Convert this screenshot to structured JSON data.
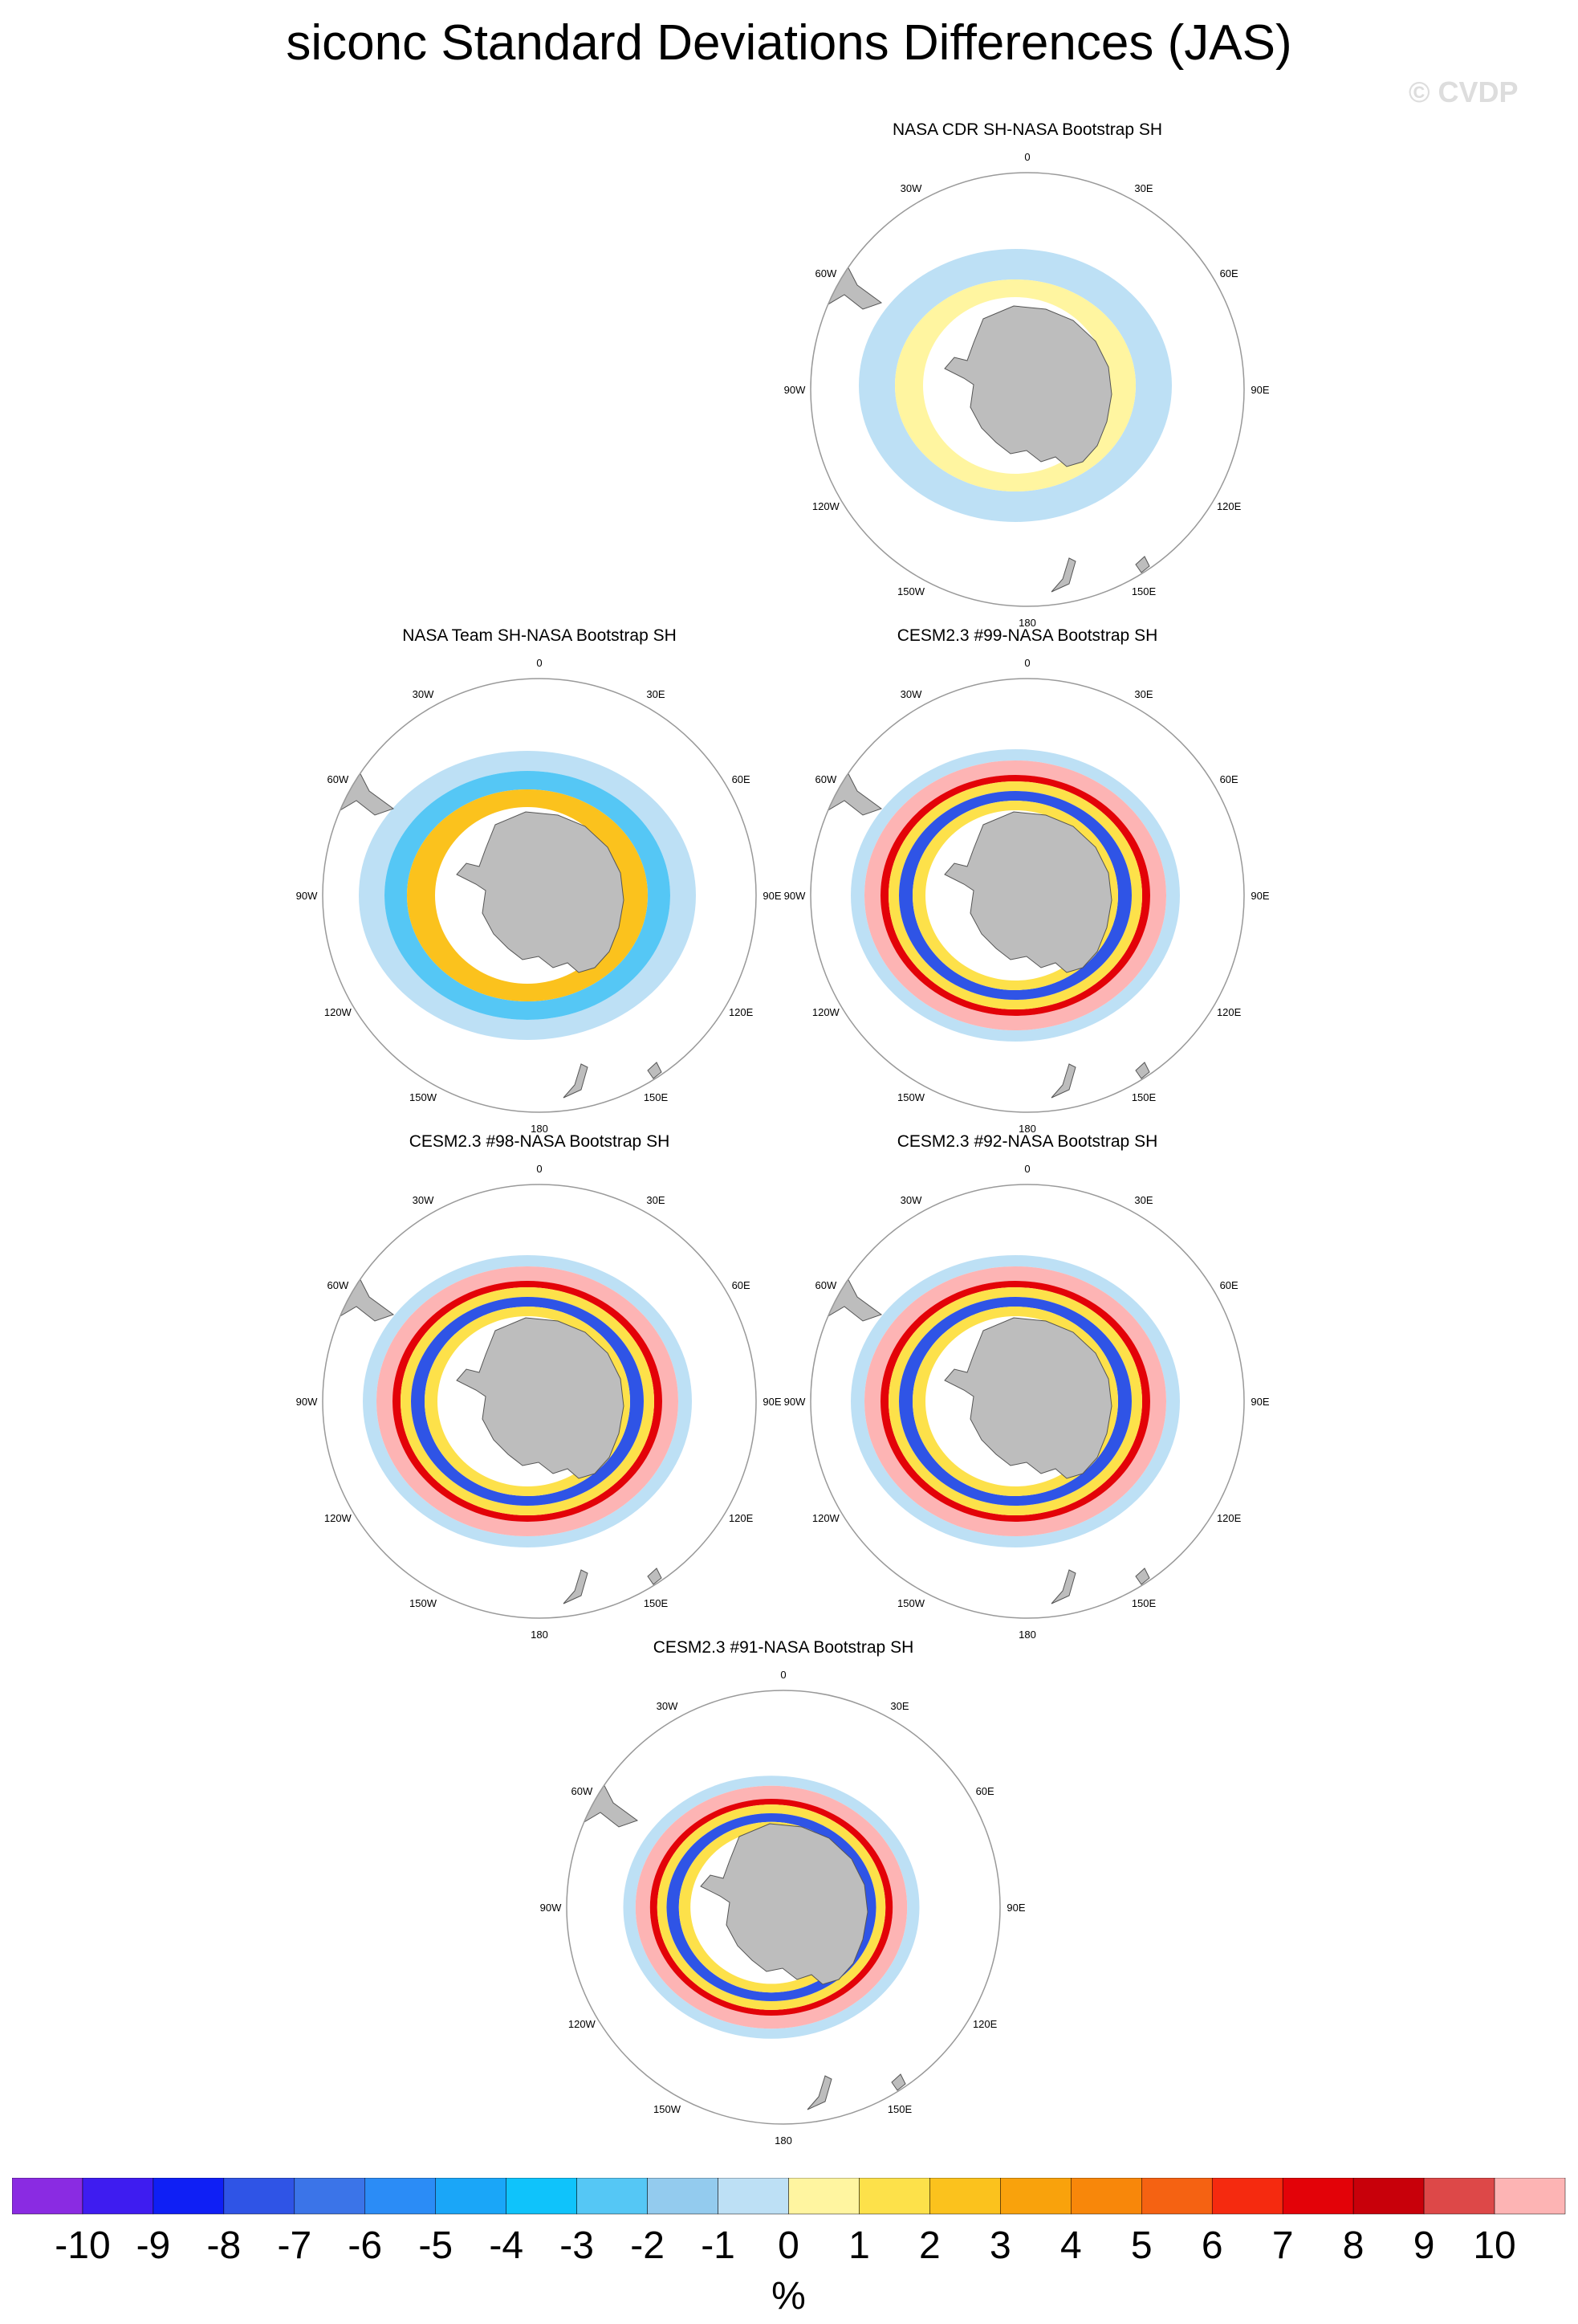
{
  "title": "siconc Standard Deviations Differences (JAS)",
  "watermark": "© CVDP",
  "panels": [
    {
      "id": "p1",
      "title": "NASA CDR SH-NASA Bootstrap SH",
      "pattern": "cdr"
    },
    {
      "id": "p2",
      "title": "NASA Team SH-NASA Bootstrap SH",
      "pattern": "team"
    },
    {
      "id": "p3",
      "title": "CESM2.3 #99-NASA Bootstrap SH",
      "pattern": "model"
    },
    {
      "id": "p4",
      "title": "CESM2.3 #98-NASA Bootstrap SH",
      "pattern": "model"
    },
    {
      "id": "p5",
      "title": "CESM2.3 #92-NASA Bootstrap SH",
      "pattern": "model"
    },
    {
      "id": "p6",
      "title": "CESM2.3 #91-NASA Bootstrap SH",
      "pattern": "model"
    }
  ],
  "map_labels": [
    "0",
    "30E",
    "60E",
    "90E",
    "120E",
    "150E",
    "180",
    "150W",
    "120W",
    "90W",
    "60W",
    "30W"
  ],
  "colorbar": {
    "colors": [
      "#8a2be2",
      "#3e1cf0",
      "#0f1ff5",
      "#2f54e6",
      "#3b74e8",
      "#2b8cf6",
      "#1aa6f8",
      "#0fc3fb",
      "#55c7f5",
      "#93cbee",
      "#bde0f5",
      "#fff5a0",
      "#fde14a",
      "#fbc21d",
      "#f9a20c",
      "#f8870a",
      "#f56212",
      "#f52a0f",
      "#e30208",
      "#c8000a",
      "#dd4848",
      "#fdb4b4"
    ],
    "tick_labels": [
      "-10",
      "-9",
      "-8",
      "-7",
      "-6",
      "-5",
      "-4",
      "-3",
      "-2",
      "-1",
      "0",
      "1",
      "2",
      "3",
      "4",
      "5",
      "6",
      "7",
      "8",
      "9",
      "10"
    ],
    "unit": "%"
  },
  "chart_data": {
    "type": "heatmap",
    "title": "siconc Standard Deviations Differences (JAS)",
    "projection": "south polar stereographic",
    "colorbar_range": [
      -10,
      10
    ],
    "colorbar_levels": [
      -10,
      -9,
      -8,
      -7,
      -6,
      -5,
      -4,
      -3,
      -2,
      -1,
      0,
      1,
      2,
      3,
      4,
      5,
      6,
      7,
      8,
      9,
      10
    ],
    "units": "%",
    "panels": [
      "NASA CDR SH-NASA Bootstrap SH",
      "NASA Team SH-NASA Bootstrap SH",
      "CESM2.3 #99-NASA Bootstrap SH",
      "CESM2.3 #98-NASA Bootstrap SH",
      "CESM2.3 #92-NASA Bootstrap SH",
      "CESM2.3 #91-NASA Bootstrap SH"
    ]
  }
}
